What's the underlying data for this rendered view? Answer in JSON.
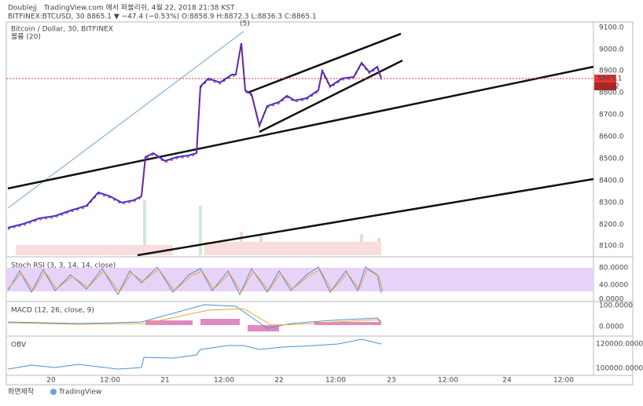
{
  "header": {
    "author": "Doublejj",
    "published": "TradingView.com 에서 퍼블리쉬, 4월 22, 2018 21:38 KST",
    "symbol_line": "BITFINEX:BTCUSD, 30 8865.1 ▼ −47.4 (−0.53%) O:8858.9 H:8872.3 L:8836.3 C:8865.1"
  },
  "main_pane": {
    "legend": "Bitcoin / Dollar, 30, BITFINEX",
    "volume": "볼륨 (20)",
    "wave_label": "(5)",
    "price_axis": [
      "9100.0",
      "9000.0",
      "8900.0",
      "8800.0",
      "8700.0",
      "8600.0",
      "8500.0",
      "8400.0",
      "8300.0",
      "8200.0",
      "8100.0"
    ],
    "last_price": "8865.1",
    "countdown": "21:42"
  },
  "stoch_rsi": {
    "legend": "Stoch RSI (3, 3, 14, 14, close)",
    "axis": [
      "80.0000",
      "40.0000",
      "0.0000"
    ]
  },
  "macd": {
    "legend": "MACD (12, 26, close, 9)",
    "axis": [
      "100.0000",
      "0.0000"
    ]
  },
  "obv": {
    "legend": "OBV",
    "axis": [
      "120000.0000",
      "100000.0000"
    ]
  },
  "time_axis": [
    "20",
    "12:00",
    "21",
    "12:00",
    "22",
    "12:00",
    "23",
    "12:00",
    "24",
    "12:00"
  ],
  "footer": {
    "caption": "화면제작",
    "brand": "TradingView"
  }
}
